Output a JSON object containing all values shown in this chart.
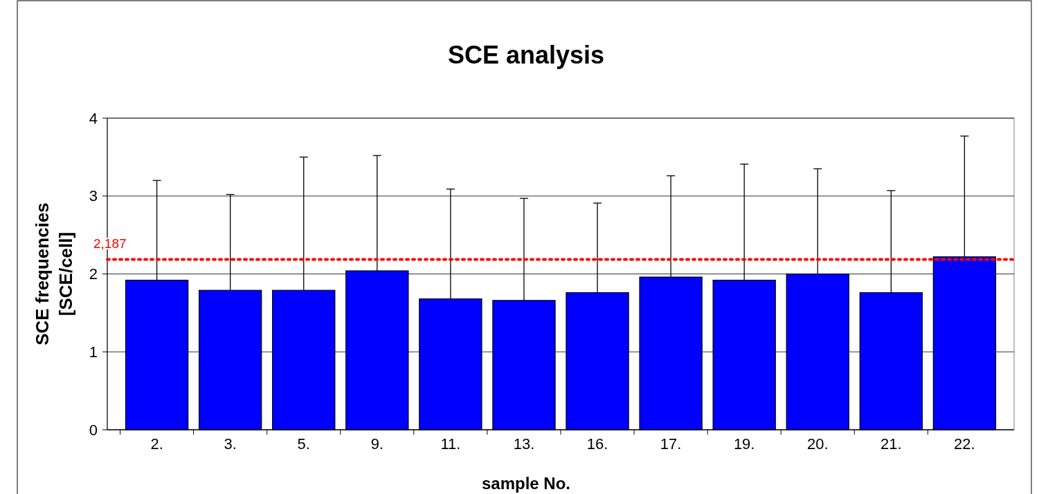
{
  "chart_data": {
    "type": "bar",
    "title": "SCE analysis",
    "xlabel": "sample No.",
    "ylabel": "SCE frequencies\n[SCE/cell]",
    "categories": [
      "2.",
      "3.",
      "5.",
      "9.",
      "11.",
      "13.",
      "16.",
      "17.",
      "19.",
      "20.",
      "21.",
      "22."
    ],
    "values": [
      1.92,
      1.79,
      1.79,
      2.04,
      1.68,
      1.66,
      1.76,
      1.96,
      1.92,
      2.0,
      1.76,
      2.22
    ],
    "errors": [
      [
        1.92,
        3.2
      ],
      [
        1.79,
        3.02
      ],
      [
        1.79,
        3.5
      ],
      [
        2.04,
        3.52
      ],
      [
        1.68,
        3.09
      ],
      [
        1.66,
        2.97
      ],
      [
        1.76,
        2.91
      ],
      [
        1.96,
        3.26
      ],
      [
        1.92,
        3.41
      ],
      [
        2.0,
        3.35
      ],
      [
        1.76,
        3.07
      ],
      [
        2.22,
        3.77
      ]
    ],
    "color": "#0000ff",
    "ylim": [
      0,
      4
    ],
    "yticks": [
      0,
      1,
      2,
      3,
      4
    ],
    "grid": "y",
    "ref_lines": [
      {
        "axis": "y",
        "value": 2.187,
        "label": "2,187",
        "color": "#ff0000",
        "line_style": "dotted"
      }
    ]
  }
}
